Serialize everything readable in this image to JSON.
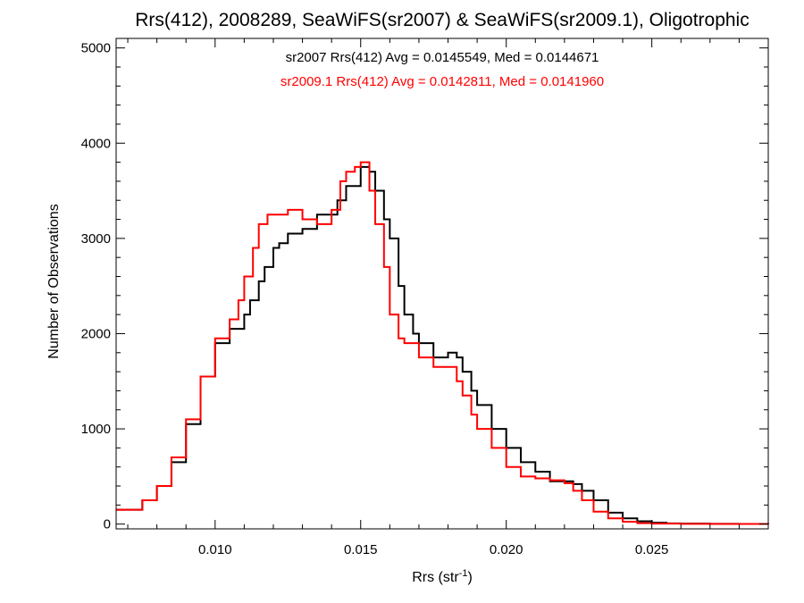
{
  "chart_data": {
    "type": "line",
    "title": "Rrs(412), 2008289, SeaWiFS(sr2007) & SeaWiFS(sr2009.1), Oligotrophic",
    "xlabel": {
      "base": "Rrs (str",
      "sup": "-1",
      "tail": ")"
    },
    "ylabel": "Number of Observations",
    "xlim": [
      0.0066,
      0.029
    ],
    "ylim": [
      -50,
      5100
    ],
    "x_ticks": [
      0.01,
      0.015,
      0.02,
      0.025
    ],
    "x_tick_labels": [
      "0.010",
      "0.015",
      "0.020",
      "0.025"
    ],
    "y_ticks": [
      0,
      1000,
      2000,
      3000,
      4000,
      5000
    ],
    "y_tick_labels": [
      "0",
      "1000",
      "2000",
      "3000",
      "4000",
      "5000"
    ],
    "step": "histogram",
    "annotations": [
      {
        "text": "sr2007 Rrs(412) Avg = 0.0145549, Med = 0.0144671",
        "color": "#000000"
      },
      {
        "text": "sr2009.1 Rrs(412) Avg = 0.0142811, Med = 0.0141960",
        "color": "#ff0000"
      }
    ],
    "series": [
      {
        "color": "#000000",
        "x": [
          0.0066,
          0.0075,
          0.008,
          0.0085,
          0.009,
          0.0095,
          0.01,
          0.0105,
          0.011,
          0.0112,
          0.0115,
          0.0117,
          0.012,
          0.0122,
          0.0125,
          0.013,
          0.0135,
          0.014,
          0.0142,
          0.0145,
          0.0147,
          0.015,
          0.0153,
          0.0155,
          0.0158,
          0.016,
          0.0163,
          0.0165,
          0.0168,
          0.017,
          0.0175,
          0.018,
          0.0183,
          0.0185,
          0.0188,
          0.019,
          0.0195,
          0.02,
          0.0205,
          0.021,
          0.0215,
          0.022,
          0.0223,
          0.0226,
          0.023,
          0.0235,
          0.024,
          0.0245,
          0.025,
          0.0255,
          0.026,
          0.027,
          0.028,
          0.029
        ],
        "values": [
          150,
          250,
          400,
          650,
          1050,
          1550,
          1900,
          2050,
          2200,
          2350,
          2550,
          2700,
          2900,
          2950,
          3050,
          3100,
          3250,
          3250,
          3400,
          3550,
          3550,
          3750,
          3700,
          3500,
          3200,
          3000,
          2500,
          2200,
          2000,
          1900,
          1750,
          1800,
          1750,
          1600,
          1400,
          1250,
          1000,
          800,
          650,
          550,
          450,
          450,
          420,
          350,
          250,
          120,
          60,
          30,
          15,
          8,
          5,
          3,
          2,
          0
        ]
      },
      {
        "color": "#ff0000",
        "x": [
          0.0066,
          0.0075,
          0.008,
          0.0085,
          0.009,
          0.0095,
          0.01,
          0.0105,
          0.0108,
          0.011,
          0.0113,
          0.0115,
          0.0118,
          0.012,
          0.0125,
          0.013,
          0.0135,
          0.014,
          0.0143,
          0.0145,
          0.0148,
          0.015,
          0.0153,
          0.0155,
          0.0158,
          0.016,
          0.0163,
          0.0165,
          0.017,
          0.0175,
          0.018,
          0.0183,
          0.0185,
          0.0188,
          0.019,
          0.0195,
          0.02,
          0.0205,
          0.021,
          0.0215,
          0.022,
          0.0223,
          0.0226,
          0.023,
          0.0235,
          0.024,
          0.0245,
          0.025,
          0.026,
          0.027,
          0.028,
          0.029
        ],
        "values": [
          150,
          250,
          400,
          700,
          1100,
          1550,
          1950,
          2150,
          2350,
          2600,
          2900,
          3150,
          3250,
          3250,
          3300,
          3200,
          3150,
          3300,
          3600,
          3700,
          3750,
          3800,
          3500,
          3150,
          2700,
          2200,
          1950,
          1900,
          1750,
          1650,
          1650,
          1500,
          1350,
          1150,
          1000,
          800,
          600,
          500,
          480,
          460,
          430,
          350,
          250,
          130,
          60,
          25,
          10,
          5,
          3,
          2,
          1,
          0
        ]
      }
    ]
  }
}
